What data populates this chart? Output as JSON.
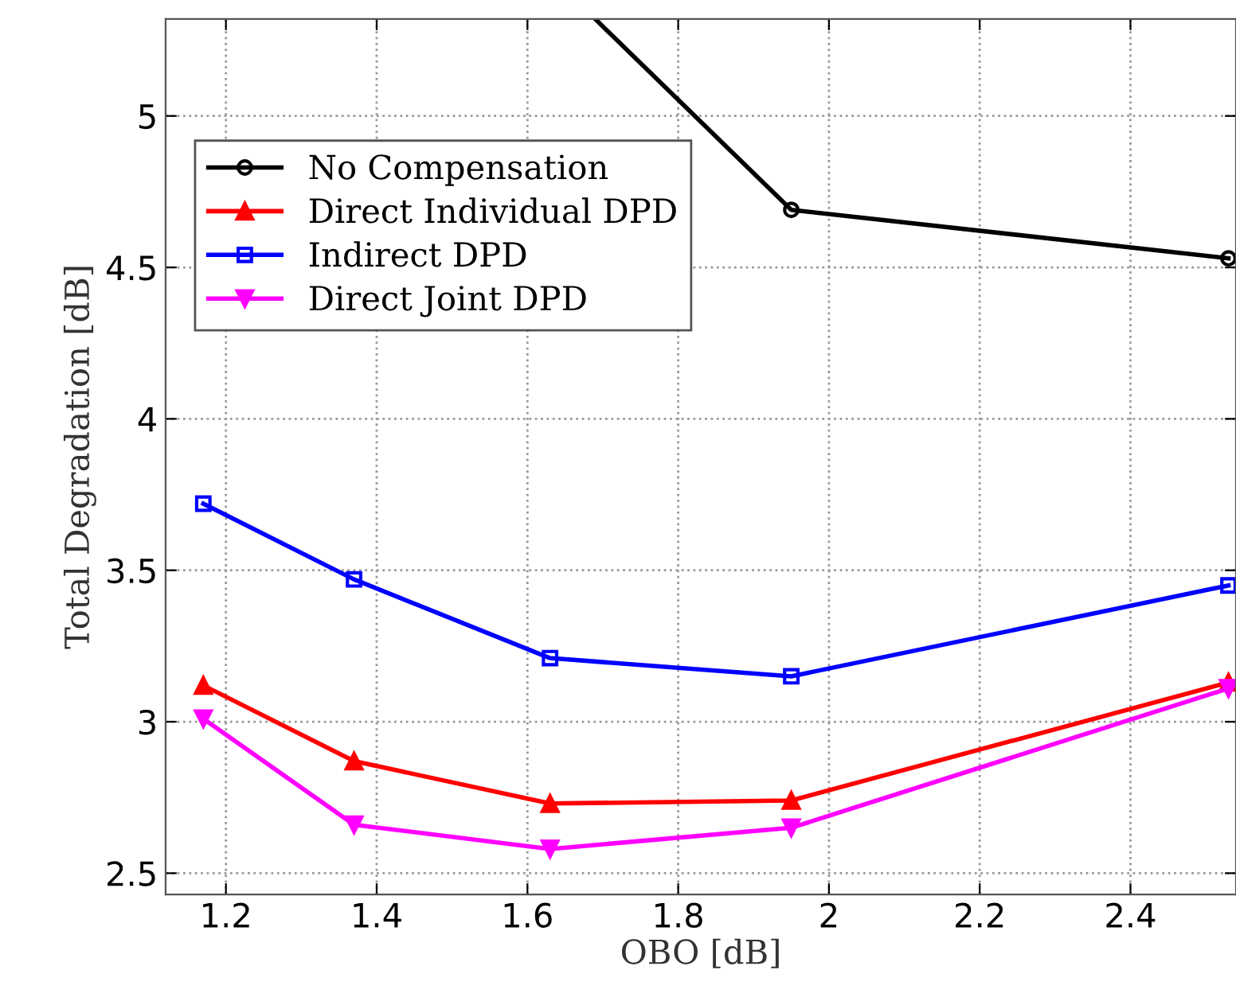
{
  "chart_data": {
    "type": "line",
    "xlabel": "OBO [dB]",
    "ylabel": "Total Degradation [dB]",
    "x": [
      1.17,
      1.37,
      1.63,
      1.95,
      2.53
    ],
    "series": [
      {
        "name": "No Compensation",
        "color": "#000000",
        "marker": "circle",
        "x": [
          1.69,
          1.95,
          2.53
        ],
        "values": [
          5.32,
          4.69,
          4.53
        ]
      },
      {
        "name": "Direct Individual DPD",
        "color": "#ff0000",
        "marker": "triangle",
        "values": [
          3.12,
          2.87,
          2.73,
          2.74,
          3.13
        ]
      },
      {
        "name": "Indirect DPD",
        "color": "#0000ff",
        "marker": "square",
        "values": [
          3.72,
          3.47,
          3.21,
          3.15,
          3.45
        ]
      },
      {
        "name": "Direct Joint DPD",
        "color": "#ff00ff",
        "marker": "triangle_down",
        "values": [
          3.01,
          2.66,
          2.58,
          2.65,
          3.11
        ]
      }
    ],
    "xlim": [
      1.12,
      2.54
    ],
    "xticks": [
      1.2,
      1.4,
      1.6,
      1.8,
      2,
      2.2,
      2.4
    ],
    "ylim": [
      2.43,
      5.32
    ],
    "yticks": [
      2.5,
      3,
      3.5,
      4,
      4.5,
      5
    ],
    "grid": true,
    "legend": "top left",
    "line_style": "solid"
  }
}
